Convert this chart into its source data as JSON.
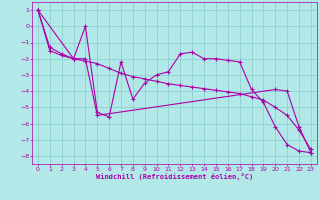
{
  "xlabel": "Windchill (Refroidissement éolien,°C)",
  "background_color": "#b2e8e8",
  "grid_color": "#88cccc",
  "line_color": "#aa00aa",
  "xlim": [
    -0.5,
    23.5
  ],
  "ylim": [
    -8.5,
    1.5
  ],
  "xticks": [
    0,
    1,
    2,
    3,
    4,
    5,
    6,
    7,
    8,
    9,
    10,
    11,
    12,
    13,
    14,
    15,
    16,
    17,
    18,
    19,
    20,
    21,
    22,
    23
  ],
  "yticks": [
    -8,
    -7,
    -6,
    -5,
    -4,
    -3,
    -2,
    -1,
    0,
    1
  ],
  "series1_x": [
    0,
    1,
    2,
    3,
    4,
    5,
    6,
    7,
    8,
    9,
    10,
    11,
    12,
    13,
    14,
    15,
    16,
    17,
    18,
    19,
    20,
    21,
    22,
    23
  ],
  "series1_y": [
    1.0,
    -1.5,
    -1.8,
    -2.0,
    0.0,
    -5.3,
    -5.6,
    -2.2,
    -4.5,
    -3.5,
    -3.0,
    -2.8,
    -1.7,
    -1.6,
    -2.0,
    -2.0,
    -2.1,
    -2.2,
    -3.9,
    -4.7,
    -6.2,
    -7.3,
    -7.7,
    -7.8
  ],
  "series2_x": [
    0,
    3,
    4,
    5,
    20,
    21,
    22,
    23
  ],
  "series2_y": [
    1.0,
    -2.0,
    -2.0,
    -5.5,
    -3.9,
    -4.0,
    -6.2,
    -7.8
  ],
  "series3_x": [
    0,
    1,
    2,
    3,
    4,
    5,
    6,
    7,
    8,
    9,
    10,
    11,
    12,
    13,
    14,
    15,
    16,
    17,
    18,
    19,
    20,
    21,
    22,
    23
  ],
  "series3_y": [
    1.0,
    -1.3,
    -1.7,
    -2.0,
    -2.15,
    -2.3,
    -2.6,
    -2.9,
    -3.1,
    -3.25,
    -3.4,
    -3.55,
    -3.65,
    -3.75,
    -3.85,
    -3.95,
    -4.05,
    -4.15,
    -4.35,
    -4.55,
    -5.0,
    -5.5,
    -6.4,
    -7.6
  ]
}
